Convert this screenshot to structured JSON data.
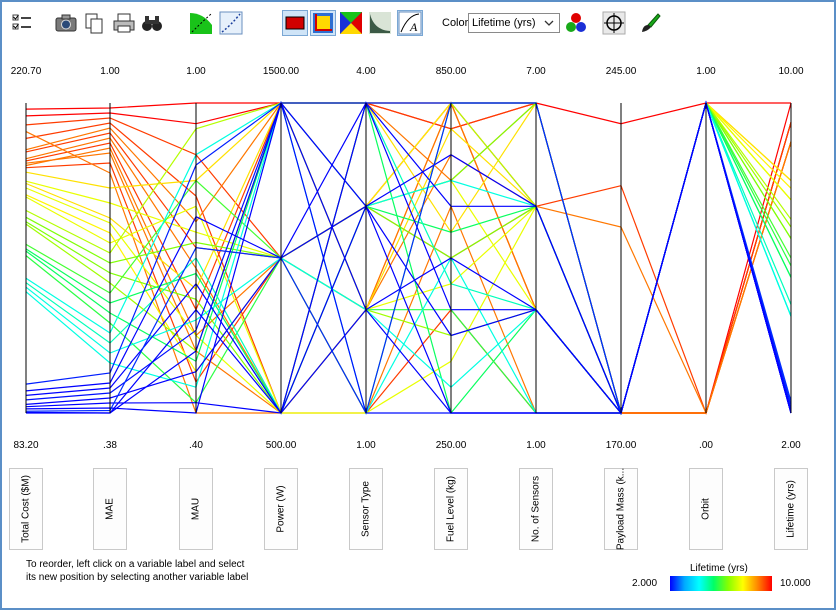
{
  "toolbar": {
    "icons": [
      "checklist-icon",
      "camera-icon",
      "copy-icon",
      "print-icon",
      "binoculars-icon",
      "green-area-icon",
      "dotted-curve-icon",
      "red-rectangle-icon",
      "axis-chart-icon",
      "colored-squares-icon",
      "decay-curve-icon",
      "line-edit-icon",
      "rgb-circles-icon",
      "crosshair-icon",
      "brush-icon"
    ],
    "color_label": "Color",
    "color_value": "Lifetime (yrs)"
  },
  "chart_data": {
    "type": "parallel_coordinates",
    "axes": [
      {
        "label": "Total Cost ($M)",
        "max": "220.70",
        "min": "83.20"
      },
      {
        "label": "MAE",
        "max": "1.00",
        "min": ".38"
      },
      {
        "label": "MAU",
        "max": "1.00",
        "min": ".40"
      },
      {
        "label": "Power (W)",
        "max": "1500.00",
        "min": "500.00"
      },
      {
        "label": "Sensor Type",
        "max": "4.00",
        "min": "1.00"
      },
      {
        "label": "Fuel Level (kg)",
        "max": "850.00",
        "min": "250.00"
      },
      {
        "label": "No. of Sensors",
        "max": "7.00",
        "min": "1.00"
      },
      {
        "label": "Payload Mass (k...",
        "max": "245.00",
        "min": "170.00"
      },
      {
        "label": "Orbit",
        "max": "1.00",
        "min": ".00"
      },
      {
        "label": "Lifetime (yrs)",
        "max": "10.00",
        "min": "2.00"
      }
    ],
    "color_by": "Lifetime (yrs)",
    "color_range": {
      "min": "2.000",
      "max": "10.000"
    },
    "colorscale": [
      "#0000ff",
      "#00aaff",
      "#00ffff",
      "#00ff66",
      "#88ff00",
      "#ffff00",
      "#ff8800",
      "#ff0000"
    ],
    "records": [
      [
        218,
        0.99,
        1.0,
        1500,
        4,
        850,
        7,
        240,
        1,
        10
      ],
      [
        215,
        0.98,
        0.96,
        1500,
        4,
        800,
        7,
        170,
        0,
        10
      ],
      [
        211,
        0.97,
        0.9,
        1000,
        3,
        850,
        5,
        225,
        0,
        9.5
      ],
      [
        205,
        0.96,
        0.82,
        500,
        4,
        800,
        7,
        170,
        0,
        9.5
      ],
      [
        200,
        0.95,
        0.77,
        1500,
        2,
        750,
        5,
        215,
        0,
        9
      ],
      [
        199,
        0.94,
        0.72,
        1000,
        3,
        850,
        3,
        170,
        0,
        9.5
      ],
      [
        196,
        0.93,
        0.68,
        500,
        1,
        650,
        1,
        170,
        0,
        9
      ],
      [
        195,
        0.92,
        0.6,
        1500,
        3,
        550,
        5,
        170,
        0,
        9.5
      ],
      [
        193,
        0.91,
        0.55,
        1000,
        2,
        850,
        3,
        170,
        0,
        9
      ],
      [
        194,
        0.9,
        0.52,
        500,
        4,
        700,
        7,
        170,
        0,
        9
      ],
      [
        192,
        0.88,
        0.46,
        1000,
        1,
        450,
        1,
        170,
        0,
        9.5
      ],
      [
        208,
        0.86,
        0.4,
        500,
        2,
        850,
        3,
        170,
        0,
        9
      ],
      [
        190,
        0.83,
        0.85,
        1500,
        2,
        800,
        5,
        170,
        1,
        8
      ],
      [
        186,
        0.8,
        0.75,
        1000,
        3,
        700,
        3,
        170,
        1,
        7.5
      ],
      [
        185,
        0.77,
        0.64,
        1500,
        4,
        600,
        7,
        170,
        1,
        8
      ],
      [
        183,
        0.76,
        0.55,
        500,
        2,
        500,
        5,
        170,
        1,
        7.5
      ],
      [
        180,
        0.74,
        0.48,
        1000,
        3,
        850,
        7,
        170,
        1,
        7.8
      ],
      [
        179,
        0.72,
        0.8,
        500,
        1,
        350,
        5,
        170,
        1,
        7.5
      ],
      [
        173,
        0.7,
        0.95,
        1500,
        4,
        850,
        5,
        170,
        1,
        7
      ],
      [
        170,
        0.68,
        0.73,
        1000,
        3,
        700,
        7,
        170,
        1,
        6.5
      ],
      [
        168,
        0.66,
        0.62,
        500,
        3,
        550,
        5,
        170,
        1,
        6.5
      ],
      [
        167,
        0.64,
        0.52,
        1500,
        2,
        400,
        3,
        170,
        1,
        6.8
      ],
      [
        158,
        0.62,
        0.85,
        1000,
        1,
        850,
        7,
        170,
        1,
        6
      ],
      [
        156,
        0.6,
        0.67,
        500,
        3,
        600,
        5,
        170,
        1,
        5.5
      ],
      [
        155,
        0.58,
        0.5,
        1500,
        4,
        250,
        3,
        170,
        1,
        5.5
      ],
      [
        153,
        0.56,
        0.42,
        1000,
        2,
        450,
        1,
        170,
        1,
        5.8
      ],
      [
        143,
        0.54,
        0.9,
        1500,
        3,
        700,
        5,
        170,
        1,
        4.5
      ],
      [
        141,
        0.52,
        0.7,
        500,
        4,
        500,
        3,
        170,
        1,
        4.8
      ],
      [
        139,
        0.5,
        0.58,
        1000,
        2,
        300,
        3,
        170,
        1,
        4.5
      ],
      [
        137,
        0.48,
        0.45,
        1500,
        1,
        550,
        1,
        170,
        1,
        4.5
      ],
      [
        96,
        0.46,
        0.88,
        1500,
        4,
        850,
        7,
        170,
        1,
        2.2
      ],
      [
        93,
        0.44,
        0.78,
        1000,
        3,
        750,
        5,
        170,
        1,
        2
      ],
      [
        91,
        0.43,
        0.65,
        500,
        2,
        550,
        3,
        170,
        1,
        2
      ],
      [
        89,
        0.42,
        0.56,
        1500,
        1,
        250,
        1,
        170,
        1,
        2.1
      ],
      [
        87,
        0.41,
        0.48,
        1000,
        4,
        650,
        5,
        170,
        1,
        2
      ],
      [
        86,
        0.4,
        0.42,
        500,
        3,
        400,
        3,
        170,
        1,
        2
      ],
      [
        85,
        0.39,
        0.4,
        1500,
        2,
        250,
        1,
        170,
        1,
        2
      ],
      [
        84,
        0.385,
        0.72,
        1000,
        1,
        850,
        7,
        170,
        1,
        2.3
      ],
      [
        83.5,
        0.38,
        0.6,
        500,
        4,
        450,
        3,
        170,
        1,
        2
      ],
      [
        83.2,
        0.38,
        0.52,
        1500,
        3,
        250,
        1,
        170,
        1,
        2
      ]
    ]
  },
  "instructions": {
    "line1": "To reorder, left click on a variable label and select",
    "line2": "its new position by selecting another variable label"
  },
  "legend": {
    "title": "Lifetime (yrs)",
    "min": "2.000",
    "max": "10.000"
  }
}
